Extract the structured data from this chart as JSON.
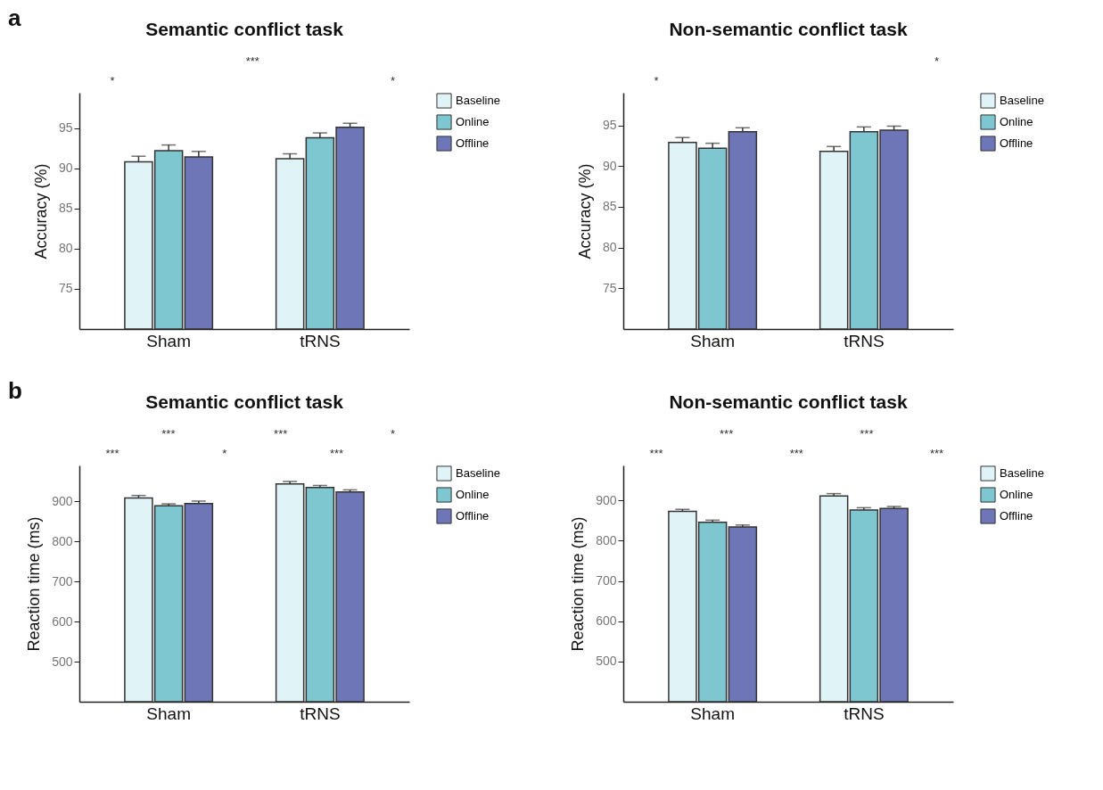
{
  "chart_data": [
    {
      "type": "bar",
      "title": "Semantic conflict task",
      "ylabel": "Accuracy (%)",
      "categories": [
        "Sham",
        "tRNS"
      ],
      "series": [
        {
          "name": "Baseline",
          "color": "#e0f3f7",
          "values": [
            90.8,
            91.2
          ],
          "errors": [
            0.7,
            0.6
          ]
        },
        {
          "name": "Online",
          "color": "#7ec6d0",
          "values": [
            92.2,
            93.8
          ],
          "errors": [
            0.7,
            0.6
          ]
        },
        {
          "name": "Offline",
          "color": "#6e76b8",
          "values": [
            91.4,
            95.1
          ],
          "errors": [
            0.7,
            0.5
          ]
        }
      ],
      "ylim": [
        70,
        99.4
      ],
      "yticks": [
        75,
        80,
        85,
        90,
        95
      ],
      "grid": false,
      "legend": "right",
      "annotations": [
        "a",
        "*",
        "***",
        "*"
      ]
    },
    {
      "type": "bar",
      "title": "Non-semantic conflict task",
      "ylabel": "Accuracy (%)",
      "categories": [
        "Sham",
        "tRNS"
      ],
      "series": [
        {
          "name": "Baseline",
          "color": "#e0f3f7",
          "values": [
            92.9,
            91.8
          ],
          "errors": [
            0.6,
            0.6
          ]
        },
        {
          "name": "Online",
          "color": "#7ec6d0",
          "values": [
            92.2,
            94.2
          ],
          "errors": [
            0.6,
            0.6
          ]
        },
        {
          "name": "Offline",
          "color": "#6e76b8",
          "values": [
            94.2,
            94.4
          ],
          "errors": [
            0.5,
            0.5
          ]
        }
      ],
      "ylim": [
        70,
        99
      ],
      "yticks": [
        75,
        80,
        85,
        90,
        95
      ],
      "grid": false,
      "legend": "right",
      "annotations": [
        "*",
        "*"
      ]
    },
    {
      "type": "bar",
      "title": "Semantic conflict task",
      "ylabel": "Reaction time (ms)",
      "categories": [
        "Sham",
        "tRNS"
      ],
      "series": [
        {
          "name": "Baseline",
          "color": "#e0f3f7",
          "values": [
            909,
            944
          ],
          "errors": [
            6,
            6
          ]
        },
        {
          "name": "Online",
          "color": "#7ec6d0",
          "values": [
            889,
            935
          ],
          "errors": [
            5,
            5
          ]
        },
        {
          "name": "Offline",
          "color": "#6e76b8",
          "values": [
            895,
            924
          ],
          "errors": [
            6,
            5
          ]
        }
      ],
      "ylim": [
        400,
        990
      ],
      "yticks": [
        500,
        600,
        700,
        800,
        900
      ],
      "grid": false,
      "legend": "right",
      "annotations": [
        "b",
        "***",
        "***",
        "*",
        "***",
        "***",
        "*"
      ]
    },
    {
      "type": "bar",
      "title": "Non-semantic conflict task",
      "ylabel": "Reaction time (ms)",
      "categories": [
        "Sham",
        "tRNS"
      ],
      "series": [
        {
          "name": "Baseline",
          "color": "#e0f3f7",
          "values": [
            873,
            911
          ],
          "errors": [
            5,
            6
          ]
        },
        {
          "name": "Online",
          "color": "#7ec6d0",
          "values": [
            846,
            876
          ],
          "errors": [
            5,
            6
          ]
        },
        {
          "name": "Offline",
          "color": "#6e76b8",
          "values": [
            834,
            880
          ],
          "errors": [
            5,
            5
          ]
        }
      ],
      "ylim": [
        400,
        987
      ],
      "yticks": [
        500,
        600,
        700,
        800,
        900
      ],
      "grid": false,
      "legend": "right",
      "annotations": [
        "***",
        "***",
        "***",
        "***",
        "***"
      ]
    }
  ]
}
